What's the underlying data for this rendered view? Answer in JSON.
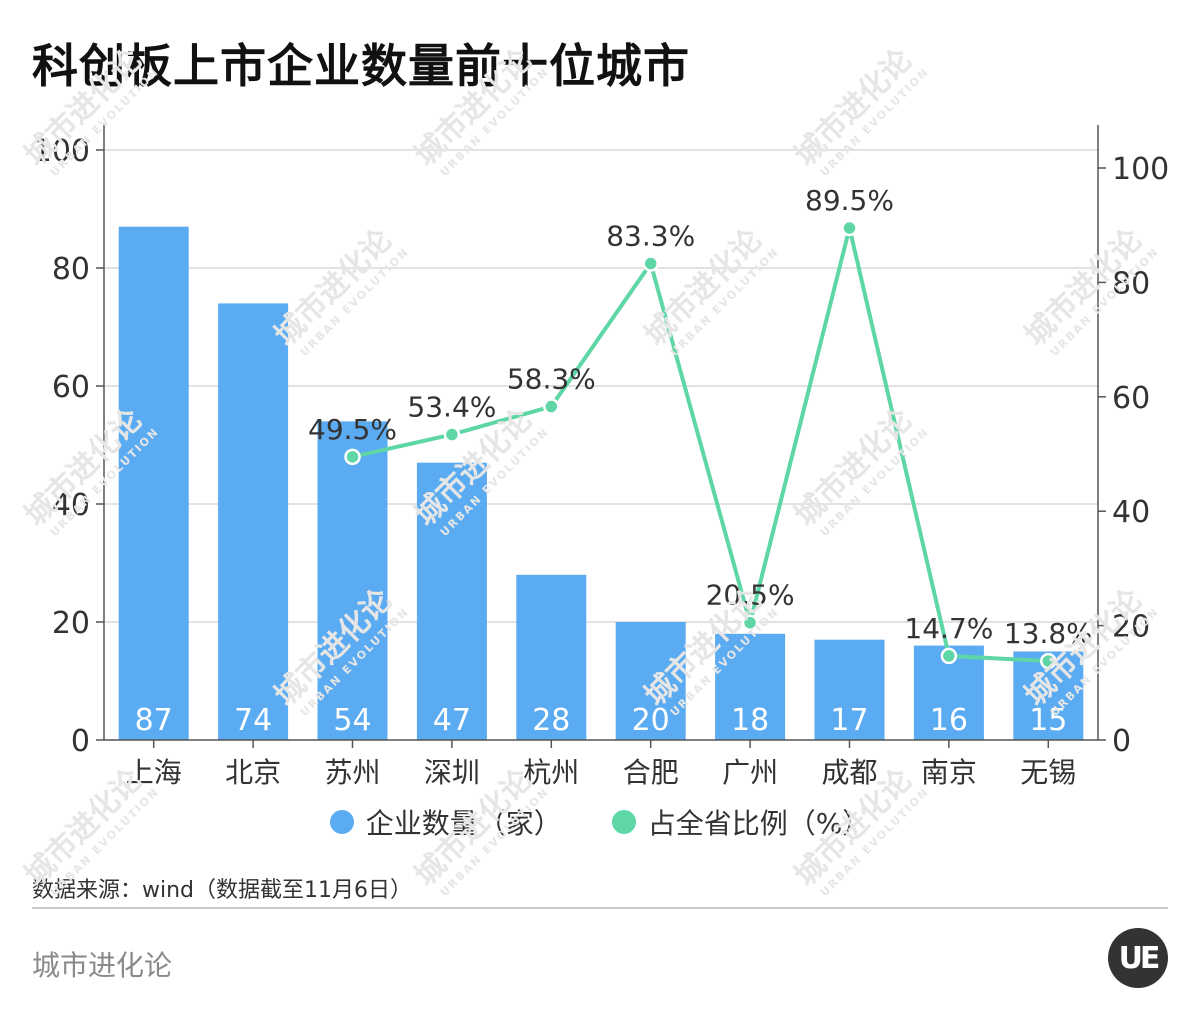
{
  "title": "科创板上市企业数量前十位城市",
  "legend": {
    "bar_label": "企业数量（家）",
    "line_label": "占全省比例（%）"
  },
  "source": "数据来源：wind（数据截至11月6日）",
  "brand": "城市进化论",
  "logo_text": "UE",
  "watermark": {
    "cn": "城市进化论",
    "en": "URBAN EVOLUTION"
  },
  "colors": {
    "bar": "#5aabf2",
    "line": "#5ed6a6",
    "grid": "#d9d9d9",
    "axis": "#555555"
  },
  "chart_data": {
    "type": "bar",
    "categories": [
      "上海",
      "北京",
      "苏州",
      "深圳",
      "杭州",
      "合肥",
      "广州",
      "成都",
      "南京",
      "无锡"
    ],
    "series": [
      {
        "name": "企业数量（家）",
        "type": "bar",
        "axis": "left",
        "values": [
          87,
          74,
          54,
          47,
          28,
          20,
          18,
          17,
          16,
          15
        ]
      },
      {
        "name": "占全省比例（%）",
        "type": "line",
        "axis": "right",
        "values": [
          null,
          null,
          49.5,
          53.4,
          58.3,
          83.3,
          20.5,
          89.5,
          14.7,
          13.8
        ],
        "labels": [
          null,
          null,
          "49.5%",
          "53.4%",
          "58.3%",
          "83.3%",
          "20.5%",
          "89.5%",
          "14.7%",
          "13.8%"
        ]
      }
    ],
    "y_left": {
      "ticks": [
        0,
        20,
        40,
        60,
        80,
        100
      ],
      "ylim": [
        0,
        100
      ]
    },
    "y_right": {
      "ticks": [
        0,
        20,
        40,
        60,
        80,
        100
      ],
      "ylim": [
        0,
        100
      ]
    },
    "grid": true,
    "legend_position": "bottom"
  }
}
